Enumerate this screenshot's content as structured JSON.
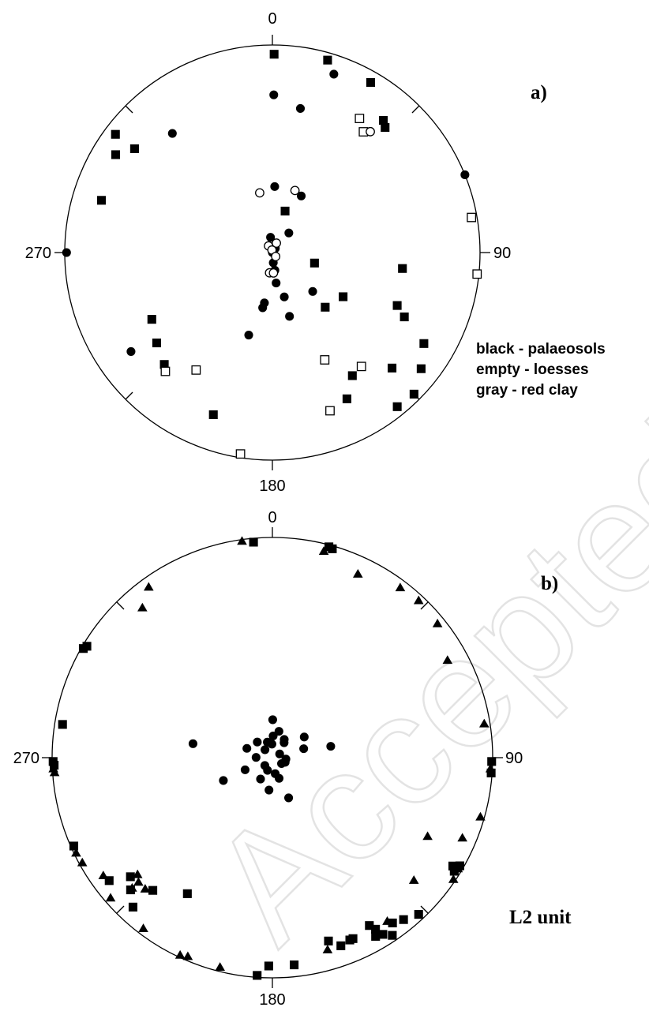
{
  "chart_data": [
    {
      "type": "scatter",
      "projection": "equal-area stereonet, lower hemisphere",
      "panel_label": "a)",
      "direction_labels": {
        "north": "0",
        "east": "90",
        "south": "180",
        "west": "270"
      },
      "legend": [
        "black - palaeosols",
        "empty - loesses",
        "gray - red clay"
      ],
      "series": [
        {
          "marker": "filled-square",
          "points": [
            [
              0.5,
              5
            ],
            [
              16,
              4
            ],
            [
              30,
              6
            ],
            [
              40,
              18
            ],
            [
              42,
              20
            ],
            [
              135,
              4
            ],
            [
              141,
              5
            ],
            [
              128,
              10
            ],
            [
              121,
              16
            ],
            [
              113,
              35
            ],
            [
              116,
              30
            ],
            [
              97,
              37
            ],
            [
              134,
              21
            ],
            [
              147,
              30
            ],
            [
              153,
              22
            ],
            [
              200,
              18
            ],
            [
              224,
              26
            ],
            [
              232,
              30
            ],
            [
              241,
              34
            ],
            [
              307,
              18
            ],
            [
              302,
              12
            ],
            [
              287,
              15
            ],
            [
              307,
              6
            ],
            [
              17,
              73
            ],
            [
              104,
              73
            ],
            [
              122,
              57
            ],
            [
              136,
              60
            ]
          ]
        },
        {
          "marker": "filled-circle",
          "points": [
            [
              19,
              10
            ],
            [
              0.5,
              25
            ],
            [
              11,
              30
            ],
            [
              320,
              26
            ],
            [
              68,
              0
            ],
            [
              270,
              1
            ],
            [
              235,
              18
            ],
            [
              2,
              64
            ],
            [
              27,
              65
            ],
            [
              134,
              68
            ],
            [
              310,
              90
            ],
            [
              353,
              88
            ],
            [
              353,
              84
            ],
            [
              165,
              64
            ],
            [
              165,
              72
            ],
            [
              175,
              86
            ],
            [
              35,
              88
            ],
            [
              40,
              80
            ],
            [
              172,
              83
            ],
            [
              189,
              70
            ],
            [
              196,
              56
            ],
            [
              190,
              68
            ],
            [
              173,
              78
            ]
          ]
        },
        {
          "marker": "open-square",
          "points": [
            [
              33,
              24
            ],
            [
              37,
              28
            ],
            [
              80,
              3
            ],
            [
              96,
              1
            ],
            [
              154,
              42
            ],
            [
              142,
              31
            ],
            [
              213,
              33
            ],
            [
              222,
              24
            ],
            [
              189,
              2
            ],
            [
              160,
              20
            ]
          ]
        },
        {
          "marker": "open-circle",
          "points": [
            [
              39,
              26
            ],
            [
              348,
              66
            ],
            [
              20,
              64
            ],
            [
              23,
              86
            ],
            [
              188,
              82
            ],
            [
              330,
              87
            ],
            [
              350,
              89
            ],
            [
              140,
              88
            ],
            [
              177,
              82
            ]
          ]
        }
      ]
    },
    {
      "type": "scatter",
      "projection": "equal-area stereonet, lower hemisphere",
      "panel_label": "b)",
      "unit_label": "L2 unit",
      "direction_labels": {
        "north": "0",
        "east": "90",
        "south": "180",
        "west": "270"
      },
      "series": [
        {
          "marker": "filled-square",
          "points": [
            [
              355,
              2
            ],
            [
              15,
              1
            ],
            [
              16,
              1.5
            ],
            [
              300,
              1
            ],
            [
              301,
              2
            ],
            [
              279,
              4
            ],
            [
              269,
              0.5
            ],
            [
              268,
              1
            ],
            [
              246,
              1.5
            ],
            [
              233,
              8
            ],
            [
              223,
              8
            ],
            [
              227,
              13
            ],
            [
              230,
              17
            ],
            [
              222,
              20
            ],
            [
              212,
              28
            ],
            [
              184,
              1
            ],
            [
              174,
              6
            ],
            [
              181,
              6
            ],
            [
              163,
              14
            ],
            [
              157,
              11
            ],
            [
              149,
              10
            ],
            [
              150,
              7
            ],
            [
              146,
              3
            ],
            [
              141,
              6
            ],
            [
              137,
              3
            ],
            [
              121,
              5
            ],
            [
              120,
              2
            ],
            [
              122,
              3
            ],
            [
              94,
              0.5
            ],
            [
              91,
              0.5
            ],
            [
              150,
              13
            ],
            [
              148,
              6
            ],
            [
              144,
              8
            ],
            [
              156,
              11
            ],
            [
              160,
              10
            ]
          ]
        },
        {
          "marker": "filled-triangle",
          "points": [
            [
              352,
              1
            ],
            [
              14,
              4
            ],
            [
              25,
              9
            ],
            [
              37,
              4
            ],
            [
              43,
              3
            ],
            [
              51,
              4
            ],
            [
              61,
              10
            ],
            [
              81,
              3
            ],
            [
              93,
              1
            ],
            [
              113,
              7
            ],
            [
              106,
              2
            ],
            [
              121,
              2
            ],
            [
              131,
              16
            ],
            [
              145,
              10
            ],
            [
              164,
              10
            ],
            [
              203,
              2
            ],
            [
              205,
              1
            ],
            [
              244,
              1
            ],
            [
              241,
              1.5
            ],
            [
              235,
              7
            ],
            [
              227,
              18
            ],
            [
              224,
              18
            ],
            [
              229,
              20
            ],
            [
              217,
              3
            ],
            [
              194,
              2
            ],
            [
              227,
              14
            ],
            [
              229,
              3
            ],
            [
              266,
              1
            ],
            [
              267,
              0.5
            ],
            [
              319,
              11
            ],
            [
              324,
              5
            ],
            [
              117,
              22
            ],
            [
              124,
              1
            ]
          ]
        },
        {
          "marker": "filled-circle",
          "points": [
            [
              0.5,
              76
            ],
            [
              280,
              60
            ],
            [
              245,
              70
            ],
            [
              79,
              68
            ],
            [
              57,
              76
            ],
            [
              158,
              74
            ],
            [
              170,
              84
            ],
            [
              290,
              80
            ],
            [
              316,
              82
            ],
            [
              14,
              80
            ],
            [
              63,
              87
            ],
            [
              110,
              85
            ],
            [
              186,
              78
            ],
            [
              209,
              81
            ],
            [
              224,
              86
            ],
            [
              96,
              85
            ],
            [
              33,
              82
            ],
            [
              317,
              86
            ],
            [
              342,
              84
            ],
            [
              74,
              78
            ],
            [
              358,
              85
            ],
            [
              123,
              86
            ],
            [
              162,
              82
            ],
            [
              201,
              85
            ],
            [
              271,
              84
            ],
            [
              38,
              83
            ],
            [
              246,
              79
            ],
            [
              2,
              82
            ]
          ]
        }
      ]
    }
  ],
  "watermark": "Accepted Manu"
}
